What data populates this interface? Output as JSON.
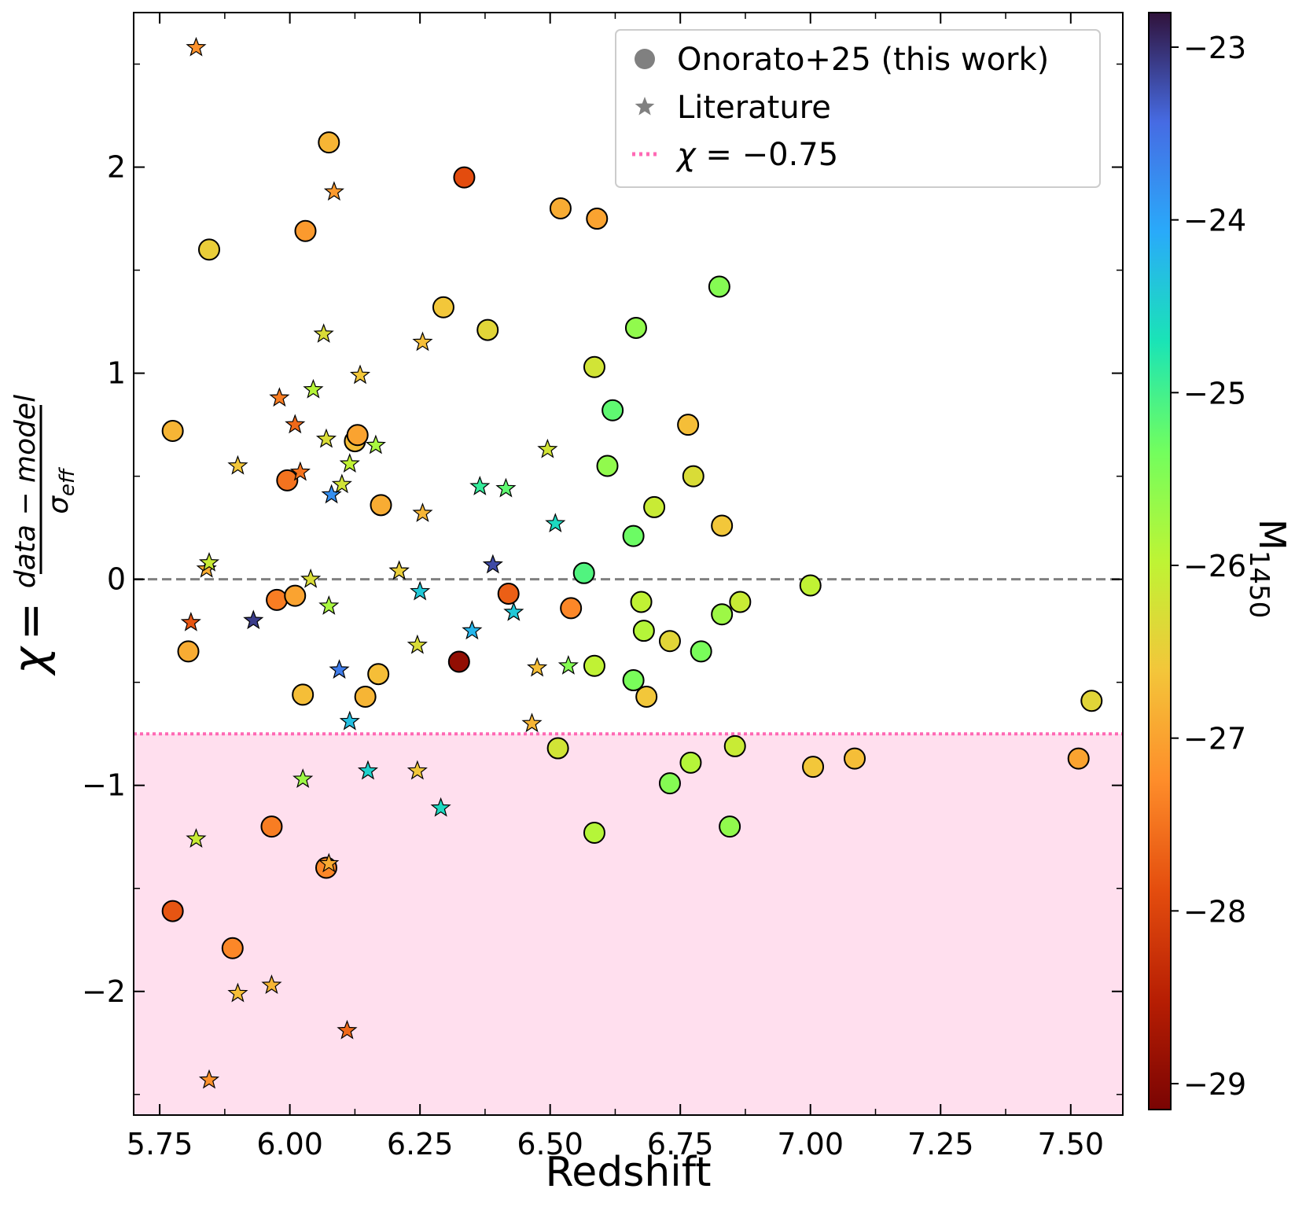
{
  "chart_data": {
    "type": "scatter",
    "xlabel": "Redshift",
    "ylabel": {
      "symbol": "χ",
      "equals": "=",
      "numerator": "data − model",
      "denominator_symbol": "σ",
      "denominator_sub": "eff"
    },
    "xlim": [
      5.7,
      7.6
    ],
    "ylim": [
      -2.6,
      2.75
    ],
    "xticks": [
      {
        "value": 5.75,
        "label": "5.75"
      },
      {
        "value": 6.0,
        "label": "6.00"
      },
      {
        "value": 6.25,
        "label": "6.25"
      },
      {
        "value": 6.5,
        "label": "6.50"
      },
      {
        "value": 6.75,
        "label": "6.75"
      },
      {
        "value": 7.0,
        "label": "7.00"
      },
      {
        "value": 7.25,
        "label": "7.25"
      },
      {
        "value": 7.5,
        "label": "7.50"
      }
    ],
    "yticks": [
      {
        "value": -2,
        "label": "−2"
      },
      {
        "value": -1,
        "label": "−1"
      },
      {
        "value": 0,
        "label": "0"
      },
      {
        "value": 1,
        "label": "1"
      },
      {
        "value": 2,
        "label": "2"
      }
    ],
    "threshold": {
      "value": -0.75,
      "color": "#ff69b4",
      "fill": "#ffdfee"
    },
    "zero_line": {
      "value": 0,
      "color": "#808080"
    },
    "colorbar": {
      "label_main": "M",
      "label_sub": "1450",
      "range": [
        -29.15,
        -22.8
      ],
      "colormap": "turbo",
      "ticks": [
        {
          "value": -23,
          "label": "−23"
        },
        {
          "value": -24,
          "label": "−24"
        },
        {
          "value": -25,
          "label": "−25"
        },
        {
          "value": -26,
          "label": "−26"
        },
        {
          "value": -27,
          "label": "−27"
        },
        {
          "value": -28,
          "label": "−28"
        },
        {
          "value": -29,
          "label": "−29"
        }
      ]
    },
    "legend": {
      "position": "top-right",
      "entries": [
        {
          "marker": "circle",
          "color": "#808080",
          "label": "Onorato+25 (this work)"
        },
        {
          "marker": "star",
          "color": "#808080",
          "label": "Literature"
        },
        {
          "marker": "dotted-line",
          "color": "#ff69b4",
          "label_symbol": "χ",
          "label_rest": " = −0.75"
        }
      ]
    },
    "series": [
      {
        "name": "Onorato+25 (this work)",
        "marker": "circle",
        "points": [
          {
            "x": 5.775,
            "y": 0.72,
            "m": -26.8
          },
          {
            "x": 5.805,
            "y": -0.35,
            "m": -26.9
          },
          {
            "x": 5.775,
            "y": -1.61,
            "m": -27.8
          },
          {
            "x": 5.845,
            "y": 1.6,
            "m": -26.5
          },
          {
            "x": 5.89,
            "y": -1.79,
            "m": -27.3
          },
          {
            "x": 5.965,
            "y": -1.2,
            "m": -27.4
          },
          {
            "x": 5.975,
            "y": -0.1,
            "m": -27.4
          },
          {
            "x": 5.995,
            "y": 0.48,
            "m": -27.5
          },
          {
            "x": 6.01,
            "y": -0.08,
            "m": -27.0
          },
          {
            "x": 6.025,
            "y": -0.56,
            "m": -26.7
          },
          {
            "x": 6.03,
            "y": 1.69,
            "m": -27.1
          },
          {
            "x": 6.07,
            "y": -1.4,
            "m": -27.3
          },
          {
            "x": 6.075,
            "y": 2.12,
            "m": -26.8
          },
          {
            "x": 6.125,
            "y": 0.67,
            "m": -26.7
          },
          {
            "x": 6.13,
            "y": 0.7,
            "m": -27.0
          },
          {
            "x": 6.145,
            "y": -0.57,
            "m": -26.8
          },
          {
            "x": 6.17,
            "y": -0.46,
            "m": -26.7
          },
          {
            "x": 6.175,
            "y": 0.36,
            "m": -26.9
          },
          {
            "x": 6.295,
            "y": 1.32,
            "m": -26.6
          },
          {
            "x": 6.325,
            "y": -0.4,
            "m": -28.9
          },
          {
            "x": 6.335,
            "y": 1.95,
            "m": -27.9
          },
          {
            "x": 6.38,
            "y": 1.21,
            "m": -26.4
          },
          {
            "x": 6.42,
            "y": -0.07,
            "m": -27.7
          },
          {
            "x": 6.515,
            "y": -0.82,
            "m": -26.2
          },
          {
            "x": 6.52,
            "y": 1.8,
            "m": -26.9
          },
          {
            "x": 6.54,
            "y": -0.14,
            "m": -27.3
          },
          {
            "x": 6.565,
            "y": 0.03,
            "m": -25.1
          },
          {
            "x": 6.585,
            "y": -0.42,
            "m": -26.0
          },
          {
            "x": 6.585,
            "y": -1.23,
            "m": -25.9
          },
          {
            "x": 6.585,
            "y": 1.03,
            "m": -26.2
          },
          {
            "x": 6.59,
            "y": 1.75,
            "m": -27.0
          },
          {
            "x": 6.61,
            "y": 0.55,
            "m": -25.6
          },
          {
            "x": 6.62,
            "y": 0.82,
            "m": -25.2
          },
          {
            "x": 6.66,
            "y": 0.21,
            "m": -25.3
          },
          {
            "x": 6.66,
            "y": -0.49,
            "m": -25.4
          },
          {
            "x": 6.665,
            "y": 1.22,
            "m": -25.6
          },
          {
            "x": 6.675,
            "y": -0.11,
            "m": -26.0
          },
          {
            "x": 6.68,
            "y": -0.25,
            "m": -25.9
          },
          {
            "x": 6.685,
            "y": -0.57,
            "m": -26.6
          },
          {
            "x": 6.7,
            "y": 0.35,
            "m": -26.1
          },
          {
            "x": 6.73,
            "y": -0.3,
            "m": -26.4
          },
          {
            "x": 6.73,
            "y": -0.99,
            "m": -25.5
          },
          {
            "x": 6.765,
            "y": 0.75,
            "m": -26.7
          },
          {
            "x": 6.77,
            "y": -0.89,
            "m": -25.9
          },
          {
            "x": 6.775,
            "y": 0.5,
            "m": -26.3
          },
          {
            "x": 6.79,
            "y": -0.35,
            "m": -25.4
          },
          {
            "x": 6.825,
            "y": 1.42,
            "m": -25.5
          },
          {
            "x": 6.83,
            "y": -0.17,
            "m": -25.7
          },
          {
            "x": 6.83,
            "y": 0.26,
            "m": -26.6
          },
          {
            "x": 6.845,
            "y": -1.2,
            "m": -25.6
          },
          {
            "x": 6.855,
            "y": -0.81,
            "m": -26.1
          },
          {
            "x": 6.865,
            "y": -0.11,
            "m": -26.1
          },
          {
            "x": 7.0,
            "y": -0.03,
            "m": -26.0
          },
          {
            "x": 7.005,
            "y": -0.91,
            "m": -26.6
          },
          {
            "x": 7.085,
            "y": -0.87,
            "m": -26.7
          },
          {
            "x": 7.515,
            "y": -0.87,
            "m": -27.0
          },
          {
            "x": 7.54,
            "y": -0.59,
            "m": -26.4
          }
        ]
      },
      {
        "name": "Literature",
        "marker": "star",
        "points": [
          {
            "x": 5.82,
            "y": 2.58,
            "m": -27.2
          },
          {
            "x": 5.81,
            "y": -0.21,
            "m": -27.8
          },
          {
            "x": 5.82,
            "y": -1.26,
            "m": -26.1
          },
          {
            "x": 5.84,
            "y": 0.05,
            "m": -26.9
          },
          {
            "x": 5.845,
            "y": 0.08,
            "m": -26.1
          },
          {
            "x": 5.845,
            "y": -2.43,
            "m": -27.2
          },
          {
            "x": 5.9,
            "y": 0.55,
            "m": -26.6
          },
          {
            "x": 5.9,
            "y": -2.01,
            "m": -26.7
          },
          {
            "x": 5.93,
            "y": -0.2,
            "m": -23.1
          },
          {
            "x": 5.965,
            "y": -1.97,
            "m": -26.8
          },
          {
            "x": 5.98,
            "y": 0.88,
            "m": -27.4
          },
          {
            "x": 6.01,
            "y": 0.75,
            "m": -27.6
          },
          {
            "x": 6.02,
            "y": 0.52,
            "m": -27.5
          },
          {
            "x": 6.025,
            "y": -0.97,
            "m": -25.7
          },
          {
            "x": 6.04,
            "y": 0.0,
            "m": -26.3
          },
          {
            "x": 6.045,
            "y": 0.92,
            "m": -25.9
          },
          {
            "x": 6.065,
            "y": 1.19,
            "m": -26.3
          },
          {
            "x": 6.07,
            "y": 0.68,
            "m": -26.3
          },
          {
            "x": 6.075,
            "y": -0.13,
            "m": -25.8
          },
          {
            "x": 6.075,
            "y": -1.38,
            "m": -26.9
          },
          {
            "x": 6.08,
            "y": 0.41,
            "m": -23.8
          },
          {
            "x": 6.085,
            "y": 1.88,
            "m": -27.1
          },
          {
            "x": 6.095,
            "y": -0.44,
            "m": -23.6
          },
          {
            "x": 6.1,
            "y": 0.46,
            "m": -26.2
          },
          {
            "x": 6.11,
            "y": -2.19,
            "m": -27.6
          },
          {
            "x": 6.115,
            "y": -0.69,
            "m": -24.3
          },
          {
            "x": 6.115,
            "y": 0.56,
            "m": -26.0
          },
          {
            "x": 6.135,
            "y": 0.99,
            "m": -26.6
          },
          {
            "x": 6.15,
            "y": -0.93,
            "m": -24.5
          },
          {
            "x": 6.165,
            "y": 0.65,
            "m": -25.8
          },
          {
            "x": 6.21,
            "y": 0.04,
            "m": -25.2
          },
          {
            "x": 6.21,
            "y": 0.04,
            "m": -26.5
          },
          {
            "x": 6.245,
            "y": -0.32,
            "m": -26.3
          },
          {
            "x": 6.245,
            "y": -0.93,
            "m": -26.6
          },
          {
            "x": 6.25,
            "y": -0.06,
            "m": -24.4
          },
          {
            "x": 6.255,
            "y": 0.32,
            "m": -26.8
          },
          {
            "x": 6.255,
            "y": 1.15,
            "m": -26.7
          },
          {
            "x": 6.29,
            "y": -1.11,
            "m": -24.6
          },
          {
            "x": 6.35,
            "y": -0.25,
            "m": -24.2
          },
          {
            "x": 6.365,
            "y": 0.45,
            "m": -24.9
          },
          {
            "x": 6.39,
            "y": 0.07,
            "m": -23.2
          },
          {
            "x": 6.415,
            "y": 0.44,
            "m": -25.2
          },
          {
            "x": 6.43,
            "y": -0.16,
            "m": -24.4
          },
          {
            "x": 6.465,
            "y": -0.7,
            "m": -26.8
          },
          {
            "x": 6.475,
            "y": -0.43,
            "m": -26.7
          },
          {
            "x": 6.495,
            "y": 0.63,
            "m": -26.2
          },
          {
            "x": 6.51,
            "y": 0.27,
            "m": -24.6
          },
          {
            "x": 6.535,
            "y": -0.42,
            "m": -25.5
          }
        ]
      }
    ]
  }
}
